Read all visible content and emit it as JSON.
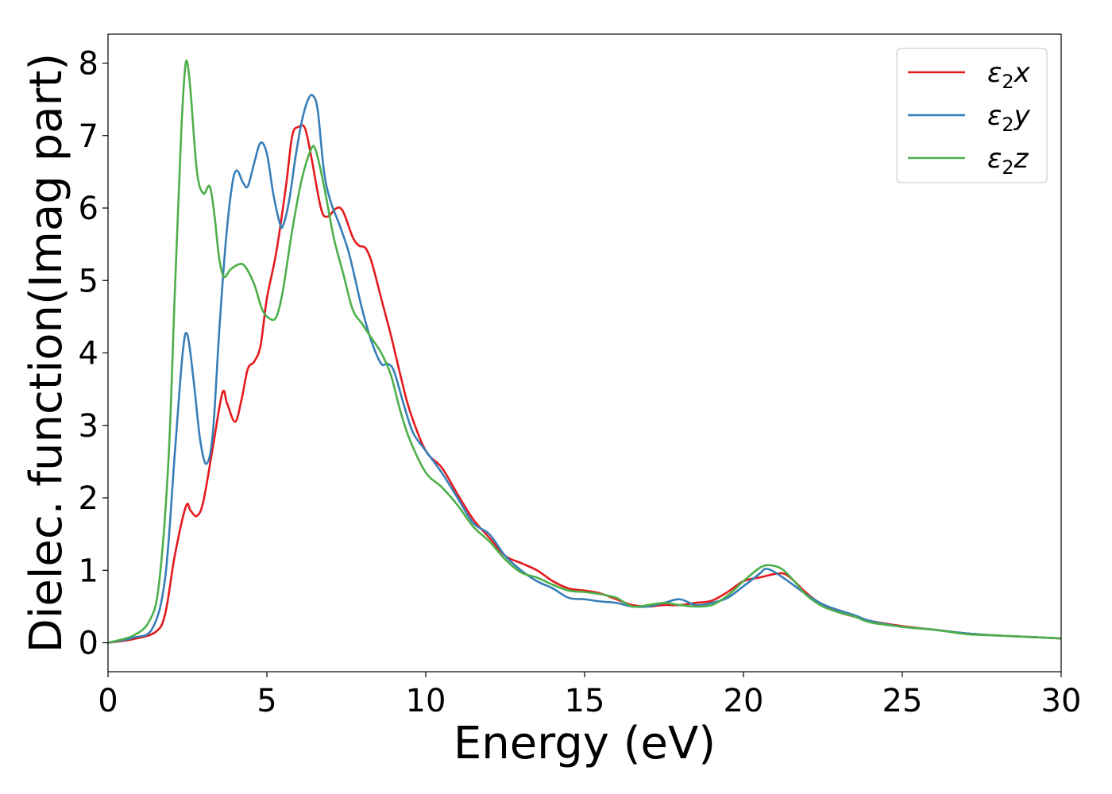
{
  "chart_data": {
    "type": "line",
    "xlabel": "Energy (eV)",
    "ylabel": "Dielec. function(Imag part)",
    "xlim": [
      0,
      30
    ],
    "ylim": [
      -0.4,
      8.4
    ],
    "xticks": [
      0,
      5,
      10,
      15,
      20,
      25,
      30
    ],
    "yticks": [
      0,
      1,
      2,
      3,
      4,
      5,
      6,
      7,
      8
    ],
    "grid": false,
    "legend_position": "top-right",
    "series": [
      {
        "name": "ε₂x",
        "legend_base": "ε",
        "legend_sub": "2",
        "legend_var": "x",
        "color": "#e41a1c",
        "points": [
          [
            0,
            0
          ],
          [
            0.8,
            0.05
          ],
          [
            1.5,
            0.15
          ],
          [
            1.8,
            0.4
          ],
          [
            2.1,
            1.2
          ],
          [
            2.45,
            1.88
          ],
          [
            2.6,
            1.82
          ],
          [
            2.8,
            1.75
          ],
          [
            3.0,
            1.95
          ],
          [
            3.3,
            2.7
          ],
          [
            3.6,
            3.45
          ],
          [
            3.75,
            3.3
          ],
          [
            4.0,
            3.05
          ],
          [
            4.2,
            3.35
          ],
          [
            4.4,
            3.78
          ],
          [
            4.6,
            3.88
          ],
          [
            4.8,
            4.1
          ],
          [
            5.0,
            4.75
          ],
          [
            5.3,
            5.4
          ],
          [
            5.6,
            6.3
          ],
          [
            5.8,
            7.0
          ],
          [
            6.0,
            7.12
          ],
          [
            6.2,
            7.1
          ],
          [
            6.4,
            6.7
          ],
          [
            6.7,
            6.0
          ],
          [
            6.9,
            5.88
          ],
          [
            7.2,
            6.0
          ],
          [
            7.4,
            5.95
          ],
          [
            7.7,
            5.6
          ],
          [
            7.9,
            5.48
          ],
          [
            8.1,
            5.45
          ],
          [
            8.3,
            5.25
          ],
          [
            8.6,
            4.75
          ],
          [
            8.9,
            4.25
          ],
          [
            9.2,
            3.7
          ],
          [
            9.5,
            3.2
          ],
          [
            10.0,
            2.65
          ],
          [
            10.5,
            2.42
          ],
          [
            11.0,
            2.05
          ],
          [
            11.5,
            1.7
          ],
          [
            12.0,
            1.45
          ],
          [
            12.5,
            1.2
          ],
          [
            13.0,
            1.1
          ],
          [
            13.5,
            1.0
          ],
          [
            14.0,
            0.85
          ],
          [
            14.5,
            0.75
          ],
          [
            15.0,
            0.72
          ],
          [
            15.5,
            0.68
          ],
          [
            16.0,
            0.6
          ],
          [
            16.5,
            0.52
          ],
          [
            17.0,
            0.5
          ],
          [
            17.5,
            0.52
          ],
          [
            18.0,
            0.52
          ],
          [
            18.5,
            0.55
          ],
          [
            19.0,
            0.58
          ],
          [
            19.5,
            0.7
          ],
          [
            20.0,
            0.85
          ],
          [
            20.5,
            0.9
          ],
          [
            21.0,
            0.95
          ],
          [
            21.3,
            0.95
          ],
          [
            21.6,
            0.85
          ],
          [
            22.0,
            0.68
          ],
          [
            22.5,
            0.52
          ],
          [
            23.0,
            0.42
          ],
          [
            23.5,
            0.36
          ],
          [
            24.0,
            0.3
          ],
          [
            25.0,
            0.23
          ],
          [
            26.0,
            0.18
          ],
          [
            27.0,
            0.13
          ],
          [
            28.0,
            0.1
          ],
          [
            29.0,
            0.08
          ],
          [
            30.0,
            0.06
          ]
        ]
      },
      {
        "name": "ε₂y",
        "legend_base": "ε",
        "legend_sub": "2",
        "legend_var": "y",
        "color": "#377eb8",
        "points": [
          [
            0,
            0
          ],
          [
            0.8,
            0.07
          ],
          [
            1.4,
            0.2
          ],
          [
            1.8,
            0.9
          ],
          [
            2.1,
            2.6
          ],
          [
            2.35,
            4.0
          ],
          [
            2.5,
            4.25
          ],
          [
            2.7,
            3.6
          ],
          [
            2.9,
            2.8
          ],
          [
            3.1,
            2.47
          ],
          [
            3.3,
            2.9
          ],
          [
            3.5,
            4.3
          ],
          [
            3.7,
            5.5
          ],
          [
            3.9,
            6.3
          ],
          [
            4.05,
            6.52
          ],
          [
            4.25,
            6.35
          ],
          [
            4.4,
            6.3
          ],
          [
            4.6,
            6.62
          ],
          [
            4.8,
            6.9
          ],
          [
            5.0,
            6.75
          ],
          [
            5.2,
            6.2
          ],
          [
            5.4,
            5.8
          ],
          [
            5.5,
            5.75
          ],
          [
            5.7,
            6.1
          ],
          [
            5.9,
            6.7
          ],
          [
            6.1,
            7.2
          ],
          [
            6.3,
            7.5
          ],
          [
            6.45,
            7.55
          ],
          [
            6.6,
            7.35
          ],
          [
            6.8,
            6.5
          ],
          [
            7.0,
            6.1
          ],
          [
            7.3,
            5.75
          ],
          [
            7.6,
            5.35
          ],
          [
            8.0,
            4.6
          ],
          [
            8.3,
            4.15
          ],
          [
            8.6,
            3.85
          ],
          [
            8.8,
            3.85
          ],
          [
            9.0,
            3.75
          ],
          [
            9.3,
            3.3
          ],
          [
            9.6,
            2.9
          ],
          [
            10.0,
            2.65
          ],
          [
            10.5,
            2.35
          ],
          [
            11.0,
            2.0
          ],
          [
            11.5,
            1.65
          ],
          [
            12.0,
            1.5
          ],
          [
            12.5,
            1.2
          ],
          [
            13.0,
            1.0
          ],
          [
            13.5,
            0.85
          ],
          [
            14.0,
            0.75
          ],
          [
            14.5,
            0.62
          ],
          [
            15.0,
            0.6
          ],
          [
            15.5,
            0.57
          ],
          [
            16.0,
            0.55
          ],
          [
            16.5,
            0.5
          ],
          [
            17.0,
            0.5
          ],
          [
            17.5,
            0.55
          ],
          [
            18.0,
            0.6
          ],
          [
            18.5,
            0.52
          ],
          [
            19.0,
            0.55
          ],
          [
            19.5,
            0.62
          ],
          [
            20.0,
            0.78
          ],
          [
            20.5,
            0.95
          ],
          [
            20.7,
            1.02
          ],
          [
            21.0,
            0.97
          ],
          [
            21.5,
            0.82
          ],
          [
            22.0,
            0.66
          ],
          [
            22.5,
            0.53
          ],
          [
            23.0,
            0.45
          ],
          [
            23.5,
            0.38
          ],
          [
            24.0,
            0.3
          ],
          [
            25.0,
            0.22
          ],
          [
            26.0,
            0.18
          ],
          [
            27.0,
            0.13
          ],
          [
            28.0,
            0.1
          ],
          [
            29.0,
            0.08
          ],
          [
            30.0,
            0.06
          ]
        ]
      },
      {
        "name": "ε₂z",
        "legend_base": "ε",
        "legend_sub": "2",
        "legend_var": "z",
        "color": "#4daf4a",
        "points": [
          [
            0,
            0
          ],
          [
            0.8,
            0.1
          ],
          [
            1.3,
            0.3
          ],
          [
            1.6,
            0.8
          ],
          [
            1.9,
            2.5
          ],
          [
            2.1,
            4.8
          ],
          [
            2.3,
            7.0
          ],
          [
            2.42,
            7.9
          ],
          [
            2.5,
            8.0
          ],
          [
            2.6,
            7.6
          ],
          [
            2.8,
            6.5
          ],
          [
            3.0,
            6.2
          ],
          [
            3.2,
            6.3
          ],
          [
            3.35,
            5.9
          ],
          [
            3.5,
            5.3
          ],
          [
            3.65,
            5.05
          ],
          [
            3.85,
            5.15
          ],
          [
            4.1,
            5.22
          ],
          [
            4.3,
            5.2
          ],
          [
            4.6,
            4.95
          ],
          [
            4.85,
            4.6
          ],
          [
            5.1,
            4.47
          ],
          [
            5.3,
            4.5
          ],
          [
            5.5,
            4.85
          ],
          [
            5.8,
            5.7
          ],
          [
            6.1,
            6.4
          ],
          [
            6.4,
            6.82
          ],
          [
            6.55,
            6.78
          ],
          [
            6.8,
            6.3
          ],
          [
            7.1,
            5.6
          ],
          [
            7.4,
            5.1
          ],
          [
            7.7,
            4.6
          ],
          [
            8.0,
            4.4
          ],
          [
            8.3,
            4.2
          ],
          [
            8.6,
            4.0
          ],
          [
            8.9,
            3.7
          ],
          [
            9.2,
            3.2
          ],
          [
            9.5,
            2.8
          ],
          [
            10.0,
            2.35
          ],
          [
            10.5,
            2.15
          ],
          [
            11.0,
            1.9
          ],
          [
            11.5,
            1.6
          ],
          [
            12.0,
            1.4
          ],
          [
            12.5,
            1.15
          ],
          [
            13.0,
            0.97
          ],
          [
            13.5,
            0.9
          ],
          [
            14.0,
            0.8
          ],
          [
            14.5,
            0.72
          ],
          [
            15.0,
            0.7
          ],
          [
            15.5,
            0.67
          ],
          [
            16.0,
            0.62
          ],
          [
            16.5,
            0.5
          ],
          [
            17.0,
            0.52
          ],
          [
            17.5,
            0.55
          ],
          [
            18.0,
            0.52
          ],
          [
            18.5,
            0.5
          ],
          [
            19.0,
            0.52
          ],
          [
            19.5,
            0.65
          ],
          [
            20.0,
            0.85
          ],
          [
            20.5,
            1.03
          ],
          [
            20.8,
            1.07
          ],
          [
            21.2,
            1.02
          ],
          [
            21.6,
            0.85
          ],
          [
            22.0,
            0.65
          ],
          [
            22.5,
            0.5
          ],
          [
            23.0,
            0.42
          ],
          [
            23.5,
            0.36
          ],
          [
            24.0,
            0.28
          ],
          [
            25.0,
            0.22
          ],
          [
            26.0,
            0.18
          ],
          [
            27.0,
            0.12
          ],
          [
            28.0,
            0.1
          ],
          [
            29.0,
            0.08
          ],
          [
            30.0,
            0.06
          ]
        ]
      }
    ]
  }
}
